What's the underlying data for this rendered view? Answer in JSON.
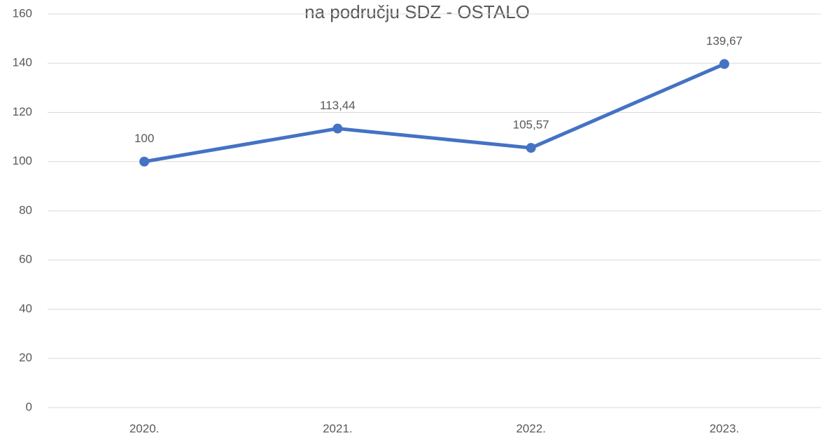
{
  "chart_data": {
    "type": "line",
    "title": "na području SDZ - OSTALO",
    "categories": [
      "2020.",
      "2021.",
      "2022.",
      "2023."
    ],
    "values": [
      100,
      113.44,
      105.57,
      139.67
    ],
    "value_labels": [
      "100",
      "113,44",
      "105,57",
      "139,67"
    ],
    "color": "#4472c4",
    "ylim": [
      0,
      160
    ],
    "yticks": [
      0,
      20,
      40,
      60,
      80,
      100,
      120,
      140,
      160
    ],
    "grid": true
  }
}
